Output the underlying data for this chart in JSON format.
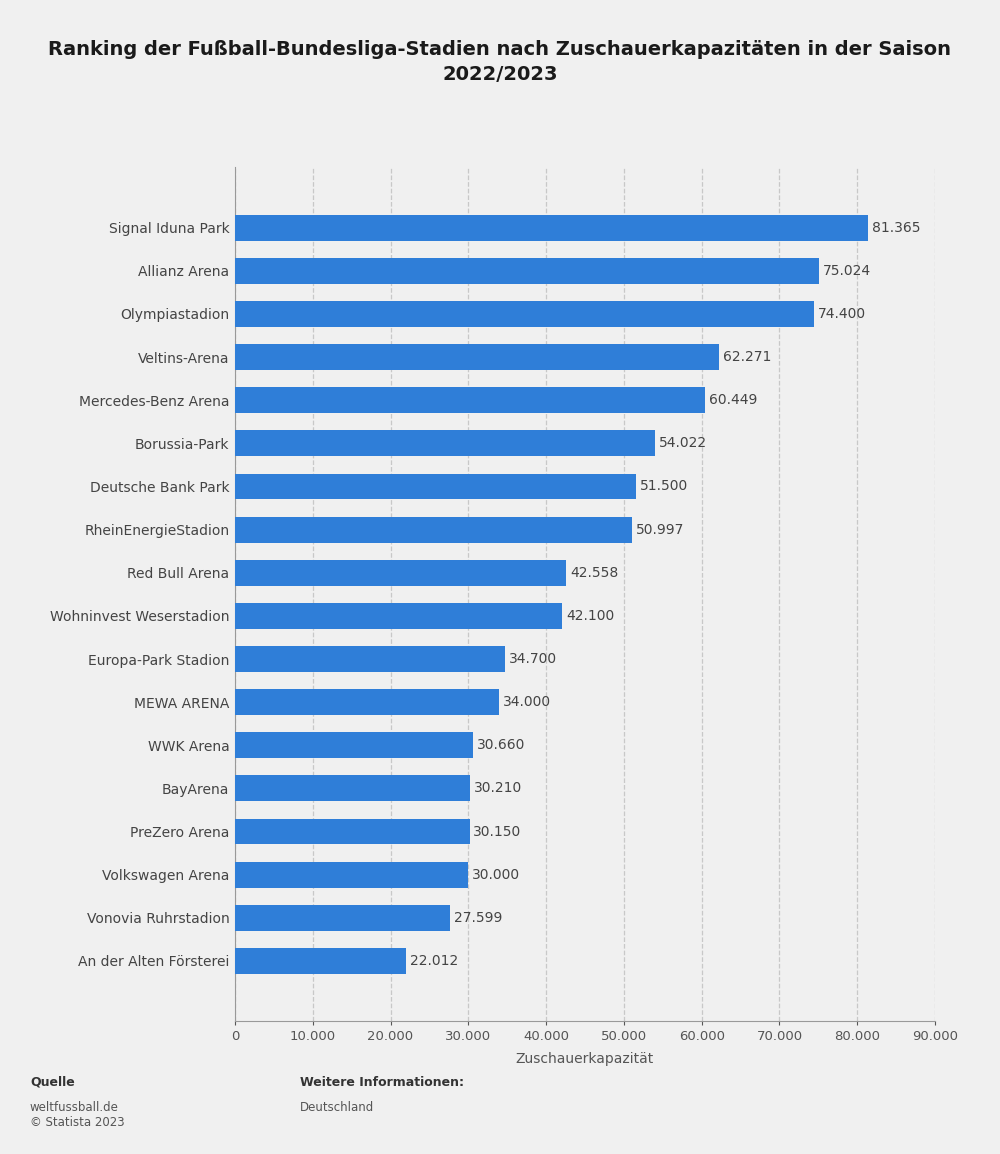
{
  "title": "Ranking der Fußball-Bundesliga-Stadien nach Zuschauerkapazitäten in der Saison\n2022/2023",
  "stadiums": [
    "Signal Iduna Park",
    "Allianz Arena",
    "Olympiastadion",
    "Veltins-Arena",
    "Mercedes-Benz Arena",
    "Borussia-Park",
    "Deutsche Bank Park",
    "RheinEnergieStadion",
    "Red Bull Arena",
    "Wohninvest Weserstadion",
    "Europa-Park Stadion",
    "MEWA ARENA",
    "WWK Arena",
    "BayArena",
    "PreZero Arena",
    "Volkswagen Arena",
    "Vonovia Ruhrstadion",
    "An der Alten Försterei"
  ],
  "values": [
    81365,
    75024,
    74400,
    62271,
    60449,
    54022,
    51500,
    50997,
    42558,
    42100,
    34700,
    34000,
    30660,
    30210,
    30150,
    30000,
    27599,
    22012
  ],
  "labels": [
    "81.365",
    "75.024",
    "74.400",
    "62.271",
    "60.449",
    "54.022",
    "51.500",
    "50.997",
    "42.558",
    "42.100",
    "34.700",
    "34.000",
    "30.660",
    "30.210",
    "30.150",
    "30.000",
    "27.599",
    "22.012"
  ],
  "bar_color": "#2f7ed8",
  "background_color": "#f0f0f0",
  "plot_background_color": "#f0f0f0",
  "xlabel": "Zuschauerkapazität",
  "xlim": [
    0,
    90000
  ],
  "xticks": [
    0,
    10000,
    20000,
    30000,
    40000,
    50000,
    60000,
    70000,
    80000,
    90000
  ],
  "xtick_labels": [
    "0",
    "10.000",
    "20.000",
    "30.000",
    "40.000",
    "50.000",
    "60.000",
    "70.000",
    "80.000",
    "90.000"
  ],
  "grid_color": "#c8c8c8",
  "source_label": "Quelle",
  "source_body": "weltfussball.de\n© Statista 2023",
  "info_label": "Weitere Informationen:",
  "info_body": "Deutschland",
  "title_fontsize": 14,
  "label_fontsize": 10,
  "tick_fontsize": 9.5
}
